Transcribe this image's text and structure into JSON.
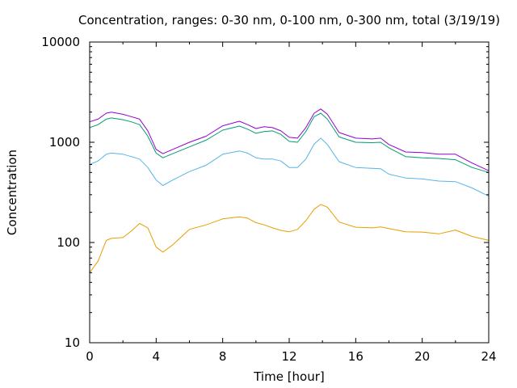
{
  "chart_data": {
    "type": "line",
    "title": "Concentration, ranges: 0-30 nm, 0-100 nm, 0-300 nm, total (3/19/19)",
    "xlabel": "Time [hour]",
    "ylabel": "Concentration",
    "xlim": [
      0,
      24
    ],
    "ylim": [
      10,
      10000
    ],
    "yscale": "log",
    "grid": false,
    "xticks": [
      0,
      4,
      8,
      12,
      16,
      20,
      24
    ],
    "xtick_labels": [
      "0",
      "4",
      "8",
      "12",
      "16",
      "20",
      "24"
    ],
    "yticks": [
      10,
      100,
      1000,
      10000
    ],
    "ytick_labels": [
      "10",
      "100",
      "1000",
      "10000"
    ],
    "x": [
      0,
      0.5,
      1,
      1.3,
      2,
      2.5,
      3,
      3.5,
      4,
      4.4,
      5,
      6,
      7,
      8,
      9,
      9.5,
      10,
      10.5,
      11,
      11.5,
      12,
      12.5,
      13,
      13.5,
      13.9,
      14.3,
      15,
      16,
      17,
      17.5,
      18,
      19,
      20,
      21,
      22,
      23,
      24
    ],
    "series": [
      {
        "color": "#e69f00",
        "values": [
          50,
          65,
          105,
          110,
          112,
          130,
          155,
          140,
          90,
          80,
          95,
          135,
          150,
          172,
          180,
          175,
          158,
          150,
          140,
          132,
          128,
          135,
          165,
          215,
          240,
          225,
          160,
          142,
          140,
          143,
          138,
          128,
          127,
          122,
          133,
          115,
          105
        ]
      },
      {
        "color": "#56b4e9",
        "values": [
          600,
          650,
          760,
          780,
          760,
          720,
          680,
          560,
          420,
          370,
          420,
          510,
          590,
          760,
          820,
          780,
          700,
          680,
          680,
          650,
          560,
          560,
          680,
          960,
          1100,
          950,
          640,
          560,
          550,
          545,
          480,
          440,
          430,
          410,
          405,
          350,
          290
        ]
      },
      {
        "color": "#009e73",
        "values": [
          1400,
          1500,
          1700,
          1750,
          1680,
          1600,
          1500,
          1150,
          780,
          700,
          770,
          900,
          1050,
          1320,
          1450,
          1350,
          1230,
          1280,
          1300,
          1200,
          1020,
          1000,
          1280,
          1800,
          1950,
          1700,
          1130,
          1000,
          990,
          1000,
          880,
          720,
          700,
          690,
          670,
          560,
          500
        ]
      },
      {
        "color": "#9400d3",
        "values": [
          1600,
          1700,
          1950,
          2000,
          1900,
          1800,
          1700,
          1300,
          850,
          770,
          850,
          1000,
          1150,
          1460,
          1620,
          1500,
          1370,
          1430,
          1400,
          1300,
          1120,
          1100,
          1400,
          1950,
          2150,
          1900,
          1250,
          1100,
          1080,
          1100,
          950,
          800,
          790,
          760,
          760,
          620,
          520
        ]
      }
    ]
  }
}
